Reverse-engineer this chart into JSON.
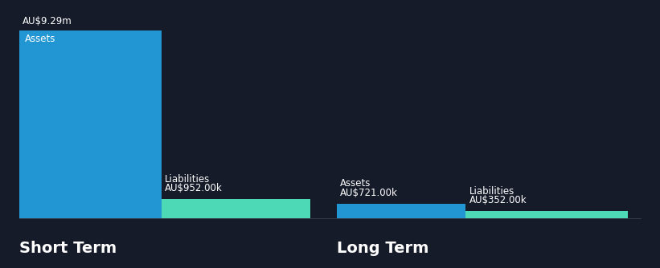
{
  "background_color": "#161b2a",
  "short_term": {
    "assets_value": 9290000,
    "assets_label": "AU$9.29m",
    "assets_inner_label": "Assets",
    "assets_color": "#2196d3",
    "liabilities_value": 952000,
    "liabilities_label": "AU$952.00k",
    "liabilities_inner_label": "Liabilities",
    "liabilities_color": "#4dd9b5"
  },
  "long_term": {
    "assets_value": 721000,
    "assets_label": "AU$721.00k",
    "assets_inner_label": "Assets",
    "assets_color": "#2196d3",
    "liabilities_value": 352000,
    "liabilities_label": "AU$352.00k",
    "liabilities_inner_label": "Liabilities",
    "liabilities_color": "#4dd9b5"
  },
  "section_labels": [
    "Short Term",
    "Long Term"
  ],
  "text_color": "#ffffff",
  "label_fontsize": 8.5,
  "section_fontsize": 14,
  "inner_label_fontsize": 8.5
}
